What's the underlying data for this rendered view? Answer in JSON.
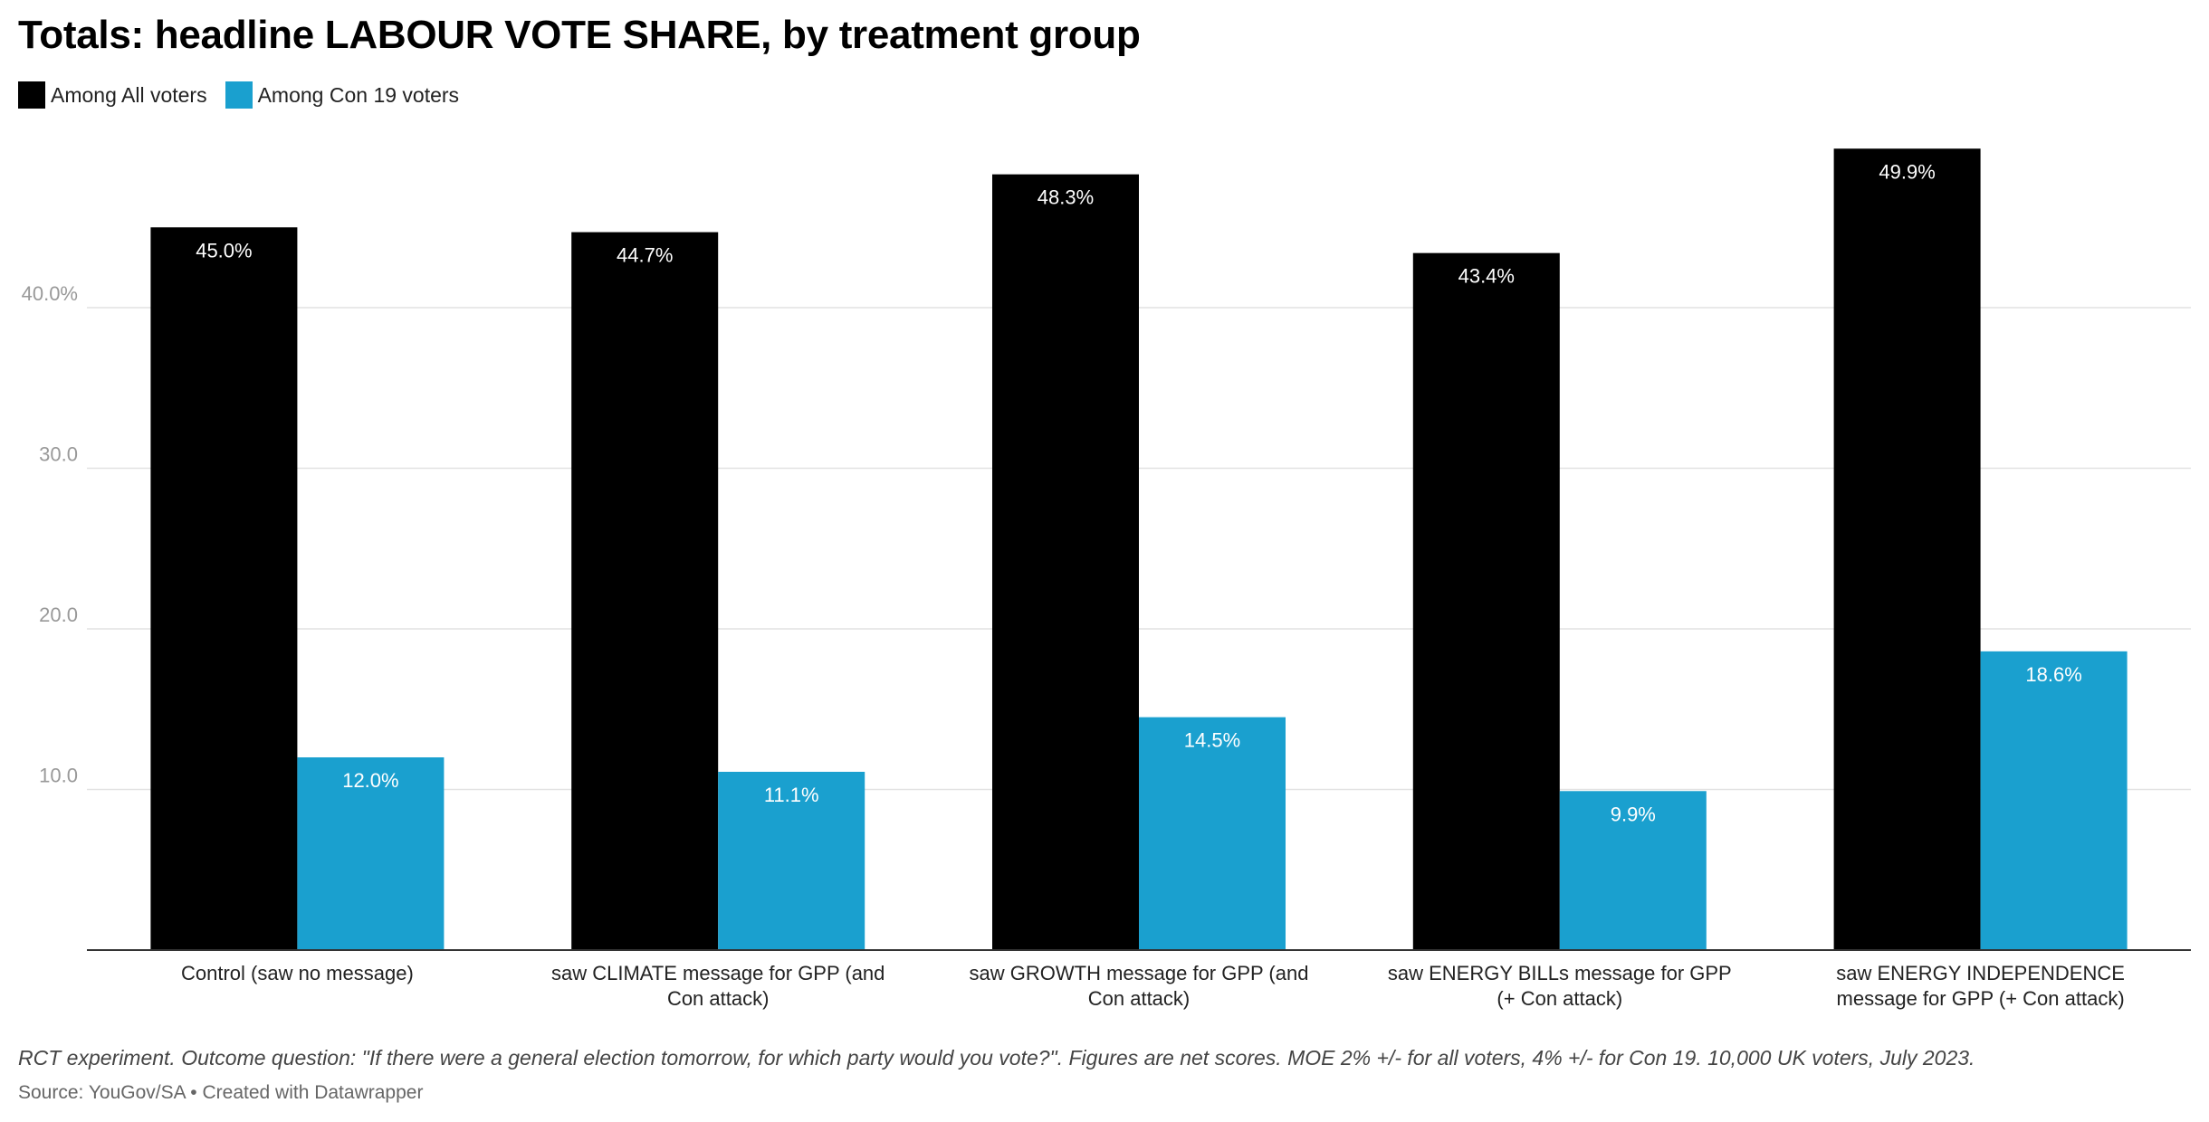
{
  "chart_data": {
    "type": "bar",
    "title": "Totals: headline LABOUR VOTE SHARE, by treatment group",
    "categories": [
      "Control (saw no message)",
      "saw CLIMATE message for GPP (and Con attack)",
      "saw GROWTH message for GPP (and Con attack)",
      "saw ENERGY BILLs message for GPP (+ Con attack)",
      "saw ENERGY INDEPENDENCE message for GPP (+ Con attack)"
    ],
    "category_lines": [
      [
        "Control (saw no message)"
      ],
      [
        "saw CLIMATE message for GPP (and",
        "Con attack)"
      ],
      [
        "saw GROWTH message for GPP (and",
        "Con attack)"
      ],
      [
        "saw ENERGY BILLs message for GPP",
        "(+ Con attack)"
      ],
      [
        "saw ENERGY INDEPENDENCE",
        "message for GPP (+ Con attack)"
      ]
    ],
    "series": [
      {
        "name": "Among All voters",
        "color": "#000000",
        "values": [
          45.0,
          44.7,
          48.3,
          43.4,
          49.9
        ],
        "labels": [
          "45.0%",
          "44.7%",
          "48.3%",
          "43.4%",
          "49.9%"
        ]
      },
      {
        "name": "Among Con 19 voters",
        "color": "#1aa0cf",
        "values": [
          12.0,
          11.1,
          14.5,
          9.9,
          18.6
        ],
        "labels": [
          "12.0%",
          "11.1%",
          "14.5%",
          "9.9%",
          "18.6%"
        ]
      }
    ],
    "ylim": [
      0,
      52
    ],
    "yticks": [
      10,
      20,
      30,
      40
    ],
    "ytick_labels": [
      "10.0",
      "20.0",
      "30.0",
      "40.0%"
    ],
    "grid": true,
    "legend_position": "top-left"
  },
  "notes": "RCT experiment. Outcome question: \"If there were a general election tomorrow, for which party would you vote?\". Figures are net scores. MOE 2% +/- for all voters, 4% +/- for Con 19. 10,000 UK voters, July 2023.",
  "source": "Source: YouGov/SA • Created with Datawrapper"
}
